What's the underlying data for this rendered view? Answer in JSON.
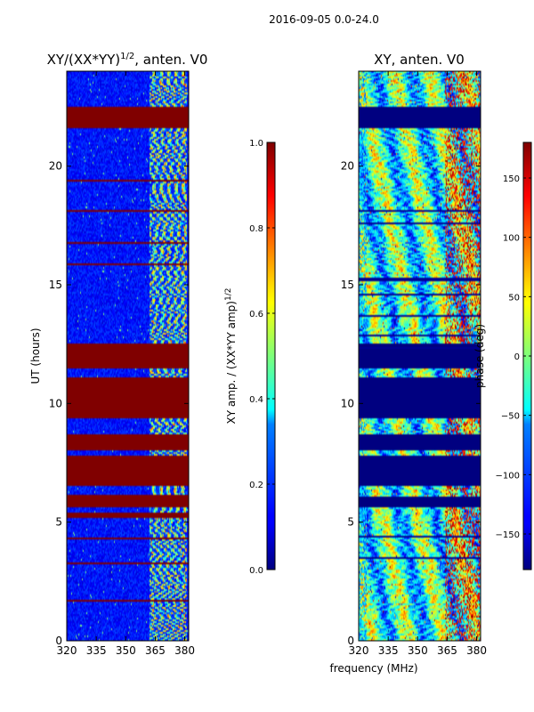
{
  "suptitle": "2016-09-05 0.0-24.0",
  "chart_data": [
    {
      "type": "heatmap",
      "title_main": "XY/(XX*YY)",
      "title_sup": "1/2",
      "title_tail": ", anten. V0",
      "xlabel": "",
      "ylabel": "UT (hours)",
      "xlim": [
        320,
        382
      ],
      "ylim": [
        0,
        24
      ],
      "xticks": [
        "320",
        "335",
        "350",
        "365",
        "380"
      ],
      "xtick_values": [
        320,
        335,
        350,
        365,
        380
      ],
      "yticks": [
        "0",
        "5",
        "10",
        "15",
        "20"
      ],
      "ytick_values": [
        0,
        5,
        10,
        15,
        20
      ],
      "colormap": "jet",
      "colorbar": {
        "label_main": "XY amp. / (XX*YY amp)",
        "label_sup": "1/2",
        "range": [
          0,
          1
        ],
        "ticks": [
          "0.0",
          "0.2",
          "0.4",
          "0.6",
          "0.8",
          "1.0"
        ],
        "tick_values": [
          0,
          0.2,
          0.4,
          0.6,
          0.8,
          1.0
        ]
      },
      "flagged_ut_bands": [
        [
          5.6,
          6.1
        ],
        [
          6.5,
          7.8
        ],
        [
          8.0,
          8.7
        ],
        [
          9.4,
          11.1
        ],
        [
          11.5,
          12.5
        ],
        [
          21.6,
          22.5
        ]
      ],
      "flagged_value": 1.0,
      "bright_freq_range": [
        362,
        381
      ]
    },
    {
      "type": "heatmap",
      "title_main": "XY, anten. V0",
      "xlabel": "frequency (MHz)",
      "ylabel": "",
      "xlim": [
        320,
        382
      ],
      "ylim": [
        0,
        24
      ],
      "xticks": [
        "320",
        "335",
        "350",
        "365",
        "380"
      ],
      "xtick_values": [
        320,
        335,
        350,
        365,
        380
      ],
      "yticks": [
        "0",
        "5",
        "10",
        "15",
        "20"
      ],
      "ytick_values": [
        0,
        5,
        10,
        15,
        20
      ],
      "colormap": "jet",
      "colorbar": {
        "label_main": "phase (deg)",
        "range": [
          -180,
          180
        ],
        "ticks": [
          "−150",
          "−100",
          "−50",
          "0",
          "50",
          "100",
          "150"
        ],
        "tick_values": [
          -150,
          -100,
          -50,
          0,
          50,
          100,
          150
        ]
      },
      "flagged_ut_bands": [
        [
          5.6,
          6.1
        ],
        [
          6.5,
          7.8
        ],
        [
          8.0,
          8.7
        ],
        [
          9.4,
          11.1
        ],
        [
          11.5,
          12.5
        ],
        [
          21.6,
          22.5
        ]
      ],
      "flagged_value": -180
    }
  ],
  "colors": {
    "jet_0": "#00007f",
    "jet_1": "#7f0000",
    "axis": "#000000",
    "background": "#ffffff"
  }
}
